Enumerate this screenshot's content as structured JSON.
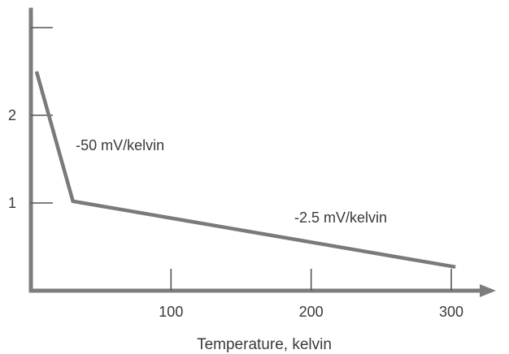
{
  "chart_data": {
    "type": "line",
    "title": "",
    "xlabel": "Temperature, kelvin",
    "ylabel": "",
    "xlim": [
      0,
      320
    ],
    "ylim": [
      0,
      3.2
    ],
    "x_ticks": [
      {
        "value": 100,
        "label": "100"
      },
      {
        "value": 200,
        "label": "200"
      },
      {
        "value": 300,
        "label": "300"
      }
    ],
    "y_ticks": [
      {
        "value": 1,
        "label": "1"
      },
      {
        "value": 2,
        "label": "2"
      },
      {
        "value": 3,
        "label": ""
      }
    ],
    "grid": false,
    "series": [
      {
        "x": [
          4,
          30,
          303
        ],
        "y": [
          2.5,
          1.02,
          0.27
        ]
      }
    ],
    "annotations": [
      {
        "text": "-50 mV/kelvin",
        "x": 32,
        "y": 1.6
      },
      {
        "text": "-2.5 mV/kelvin",
        "x": 188,
        "y": 0.78
      }
    ],
    "colors": {
      "axis": "#7d7d7d",
      "series": "#7a7a7a",
      "text": "#3a3a3a"
    }
  }
}
